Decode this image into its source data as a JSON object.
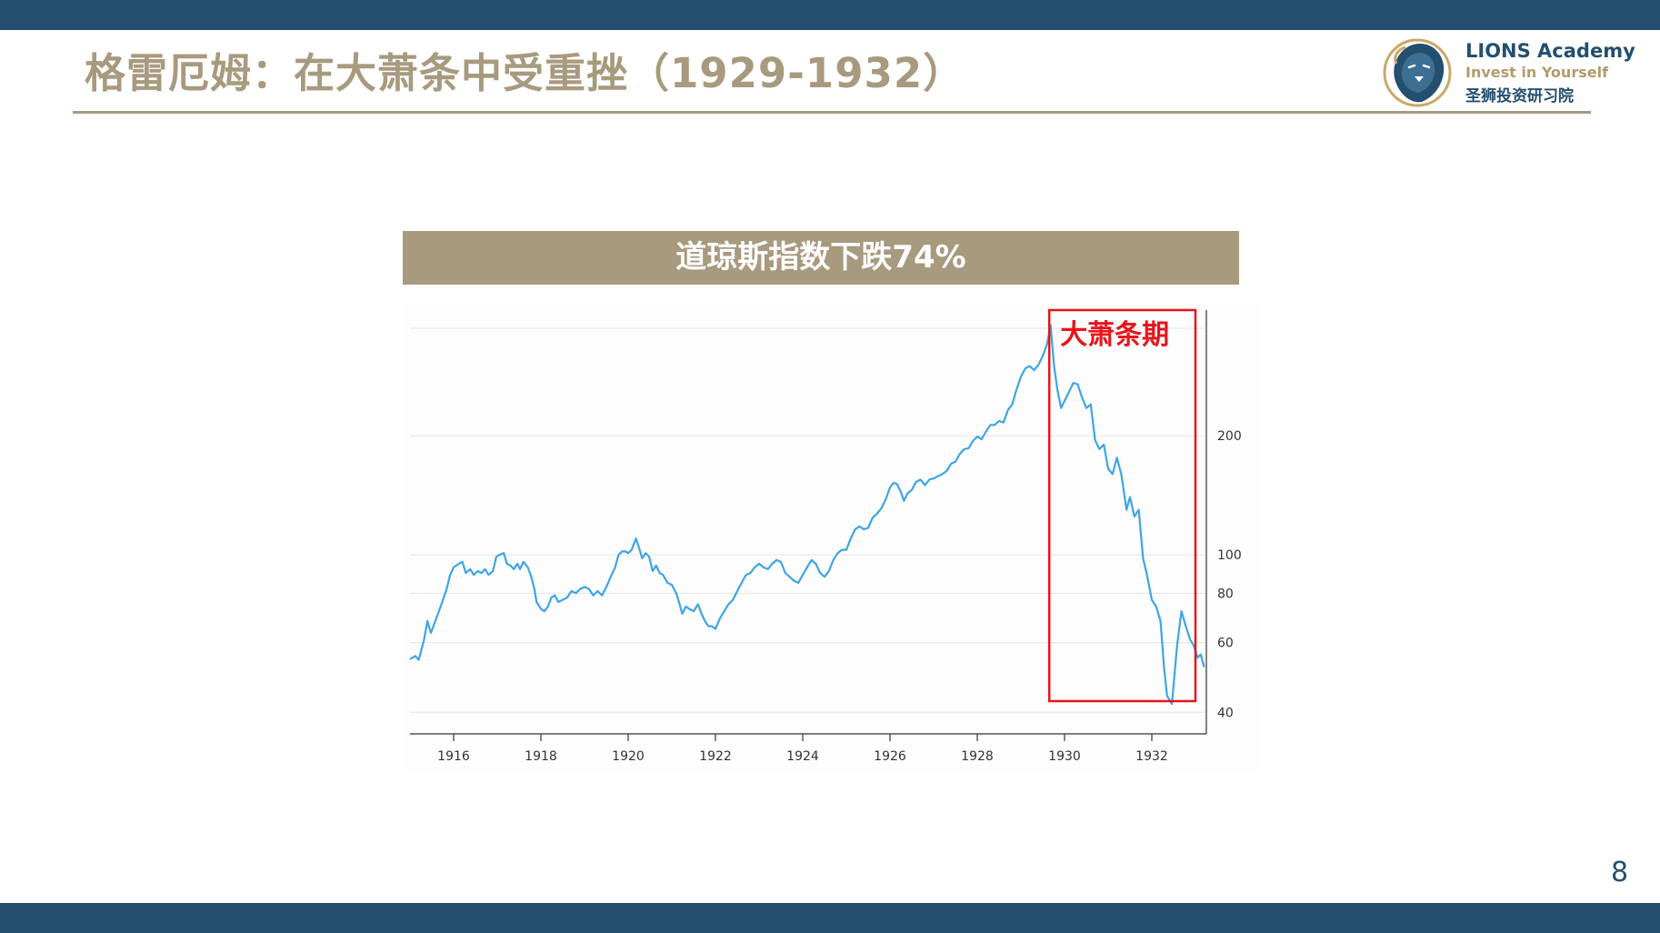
{
  "slide": {
    "title": "格雷厄姆：在大萧条中受重挫（1929-1932）",
    "page_number": "8"
  },
  "logo": {
    "name": "LIONS Academy",
    "tagline": "Invest in Yourself",
    "chinese_name": "圣狮投资研习院",
    "icon": "lion-head-icon"
  },
  "colors": {
    "header_bar": "#244f6f",
    "title_gold": "#a89a7e",
    "line": "#3ea5e4",
    "highlight": "#e8141b"
  },
  "chart_data": {
    "type": "line",
    "title": "道琼斯指数下跌74%",
    "annotation": "大萧条期",
    "xlabel": "",
    "ylabel": "",
    "y_scale": "log",
    "ylim": [
      38,
      390
    ],
    "xlim": [
      1915.0,
      1933.25
    ],
    "x_ticks": [
      1916,
      1918,
      1920,
      1922,
      1924,
      1926,
      1928,
      1930,
      1932
    ],
    "y_ticks": [
      40,
      60,
      80,
      100,
      200
    ],
    "grid": "horizontal",
    "highlight_range": [
      1929.65,
      1933.0
    ],
    "series": [
      {
        "points": [
          [
            1915.0,
            54.5
          ],
          [
            1915.12,
            55.5
          ],
          [
            1915.2,
            54.3
          ],
          [
            1915.32,
            61
          ],
          [
            1915.4,
            68
          ],
          [
            1915.48,
            63.5
          ],
          [
            1915.6,
            69
          ],
          [
            1915.72,
            75
          ],
          [
            1915.84,
            82
          ],
          [
            1915.92,
            89
          ],
          [
            1916.0,
            93
          ],
          [
            1916.12,
            95
          ],
          [
            1916.2,
            96
          ],
          [
            1916.28,
            90
          ],
          [
            1916.38,
            92
          ],
          [
            1916.46,
            89
          ],
          [
            1916.55,
            91
          ],
          [
            1916.64,
            90
          ],
          [
            1916.72,
            92
          ],
          [
            1916.8,
            89
          ],
          [
            1916.9,
            91
          ],
          [
            1916.98,
            99
          ],
          [
            1917.05,
            100
          ],
          [
            1917.15,
            101
          ],
          [
            1917.22,
            95
          ],
          [
            1917.3,
            94
          ],
          [
            1917.38,
            92
          ],
          [
            1917.46,
            95
          ],
          [
            1917.52,
            92
          ],
          [
            1917.6,
            96
          ],
          [
            1917.7,
            93
          ],
          [
            1917.78,
            88
          ],
          [
            1917.85,
            82
          ],
          [
            1917.9,
            76
          ],
          [
            1918.0,
            73
          ],
          [
            1918.08,
            72
          ],
          [
            1918.16,
            74
          ],
          [
            1918.24,
            78
          ],
          [
            1918.32,
            79
          ],
          [
            1918.4,
            76
          ],
          [
            1918.5,
            77
          ],
          [
            1918.6,
            78
          ],
          [
            1918.7,
            81
          ],
          [
            1918.8,
            80
          ],
          [
            1918.9,
            82
          ],
          [
            1919.0,
            83
          ],
          [
            1919.1,
            82
          ],
          [
            1919.2,
            79
          ],
          [
            1919.3,
            81
          ],
          [
            1919.4,
            79
          ],
          [
            1919.5,
            83
          ],
          [
            1919.6,
            88
          ],
          [
            1919.7,
            93
          ],
          [
            1919.78,
            100
          ],
          [
            1919.86,
            102
          ],
          [
            1919.94,
            102
          ],
          [
            1920.0,
            101
          ],
          [
            1920.08,
            103
          ],
          [
            1920.18,
            110
          ],
          [
            1920.24,
            105
          ],
          [
            1920.32,
            98
          ],
          [
            1920.4,
            101
          ],
          [
            1920.48,
            99
          ],
          [
            1920.56,
            91
          ],
          [
            1920.64,
            94
          ],
          [
            1920.72,
            90
          ],
          [
            1920.8,
            89
          ],
          [
            1920.9,
            85
          ],
          [
            1921.0,
            84
          ],
          [
            1921.1,
            80
          ],
          [
            1921.18,
            75
          ],
          [
            1921.24,
            71
          ],
          [
            1921.32,
            74
          ],
          [
            1921.4,
            73
          ],
          [
            1921.5,
            72
          ],
          [
            1921.6,
            75
          ],
          [
            1921.68,
            71
          ],
          [
            1921.76,
            68
          ],
          [
            1921.84,
            66
          ],
          [
            1921.92,
            66
          ],
          [
            1922.0,
            65
          ],
          [
            1922.1,
            69
          ],
          [
            1922.2,
            72
          ],
          [
            1922.3,
            75
          ],
          [
            1922.4,
            77
          ],
          [
            1922.5,
            81
          ],
          [
            1922.6,
            85
          ],
          [
            1922.7,
            89
          ],
          [
            1922.8,
            90
          ],
          [
            1922.9,
            93
          ],
          [
            1923.0,
            95
          ],
          [
            1923.1,
            93
          ],
          [
            1923.2,
            92
          ],
          [
            1923.3,
            95
          ],
          [
            1923.4,
            97
          ],
          [
            1923.5,
            96
          ],
          [
            1923.6,
            90
          ],
          [
            1923.7,
            88
          ],
          [
            1923.8,
            86
          ],
          [
            1923.9,
            85
          ],
          [
            1924.0,
            89
          ],
          [
            1924.1,
            93
          ],
          [
            1924.2,
            97
          ],
          [
            1924.3,
            95
          ],
          [
            1924.4,
            90
          ],
          [
            1924.5,
            88
          ],
          [
            1924.6,
            91
          ],
          [
            1924.7,
            97
          ],
          [
            1924.8,
            101
          ],
          [
            1924.9,
            103
          ],
          [
            1925.0,
            103
          ],
          [
            1925.1,
            110
          ],
          [
            1925.2,
            116
          ],
          [
            1925.3,
            118
          ],
          [
            1925.4,
            116
          ],
          [
            1925.5,
            117
          ],
          [
            1925.6,
            124
          ],
          [
            1925.7,
            127
          ],
          [
            1925.8,
            131
          ],
          [
            1925.9,
            138
          ],
          [
            1926.0,
            148
          ],
          [
            1926.08,
            152
          ],
          [
            1926.16,
            151
          ],
          [
            1926.24,
            145
          ],
          [
            1926.32,
            137
          ],
          [
            1926.4,
            143
          ],
          [
            1926.5,
            146
          ],
          [
            1926.6,
            153
          ],
          [
            1926.7,
            155
          ],
          [
            1926.8,
            150
          ],
          [
            1926.9,
            155
          ],
          [
            1927.0,
            156
          ],
          [
            1927.1,
            158
          ],
          [
            1927.2,
            160
          ],
          [
            1927.3,
            163
          ],
          [
            1927.4,
            170
          ],
          [
            1927.5,
            172
          ],
          [
            1927.6,
            180
          ],
          [
            1927.7,
            185
          ],
          [
            1927.8,
            186
          ],
          [
            1927.9,
            194
          ],
          [
            1928.0,
            199
          ],
          [
            1928.1,
            196
          ],
          [
            1928.2,
            205
          ],
          [
            1928.3,
            213
          ],
          [
            1928.4,
            213
          ],
          [
            1928.5,
            218
          ],
          [
            1928.6,
            216
          ],
          [
            1928.7,
            232
          ],
          [
            1928.8,
            240
          ],
          [
            1928.9,
            262
          ],
          [
            1929.0,
            282
          ],
          [
            1929.1,
            296
          ],
          [
            1929.2,
            300
          ],
          [
            1929.3,
            293
          ],
          [
            1929.4,
            302
          ],
          [
            1929.5,
            318
          ],
          [
            1929.6,
            341
          ],
          [
            1929.68,
            381
          ],
          [
            1929.76,
            300
          ],
          [
            1929.84,
            260
          ],
          [
            1929.92,
            235
          ],
          [
            1930.0,
            245
          ],
          [
            1930.1,
            258
          ],
          [
            1930.2,
            272
          ],
          [
            1930.3,
            270
          ],
          [
            1930.4,
            250
          ],
          [
            1930.5,
            235
          ],
          [
            1930.6,
            240
          ],
          [
            1930.7,
            195
          ],
          [
            1930.8,
            185
          ],
          [
            1930.9,
            190
          ],
          [
            1931.0,
            165
          ],
          [
            1931.1,
            160
          ],
          [
            1931.2,
            176
          ],
          [
            1931.3,
            160
          ],
          [
            1931.42,
            130
          ],
          [
            1931.5,
            140
          ],
          [
            1931.6,
            125
          ],
          [
            1931.7,
            130
          ],
          [
            1931.8,
            98
          ],
          [
            1931.88,
            90
          ],
          [
            1932.0,
            77
          ],
          [
            1932.1,
            74
          ],
          [
            1932.2,
            68
          ],
          [
            1932.28,
            52
          ],
          [
            1932.35,
            44
          ],
          [
            1932.46,
            42
          ],
          [
            1932.58,
            59
          ],
          [
            1932.68,
            72
          ],
          [
            1932.78,
            66
          ],
          [
            1932.88,
            61
          ],
          [
            1932.96,
            59
          ],
          [
            1933.05,
            55
          ],
          [
            1933.12,
            56
          ],
          [
            1933.2,
            52
          ]
        ]
      }
    ]
  }
}
